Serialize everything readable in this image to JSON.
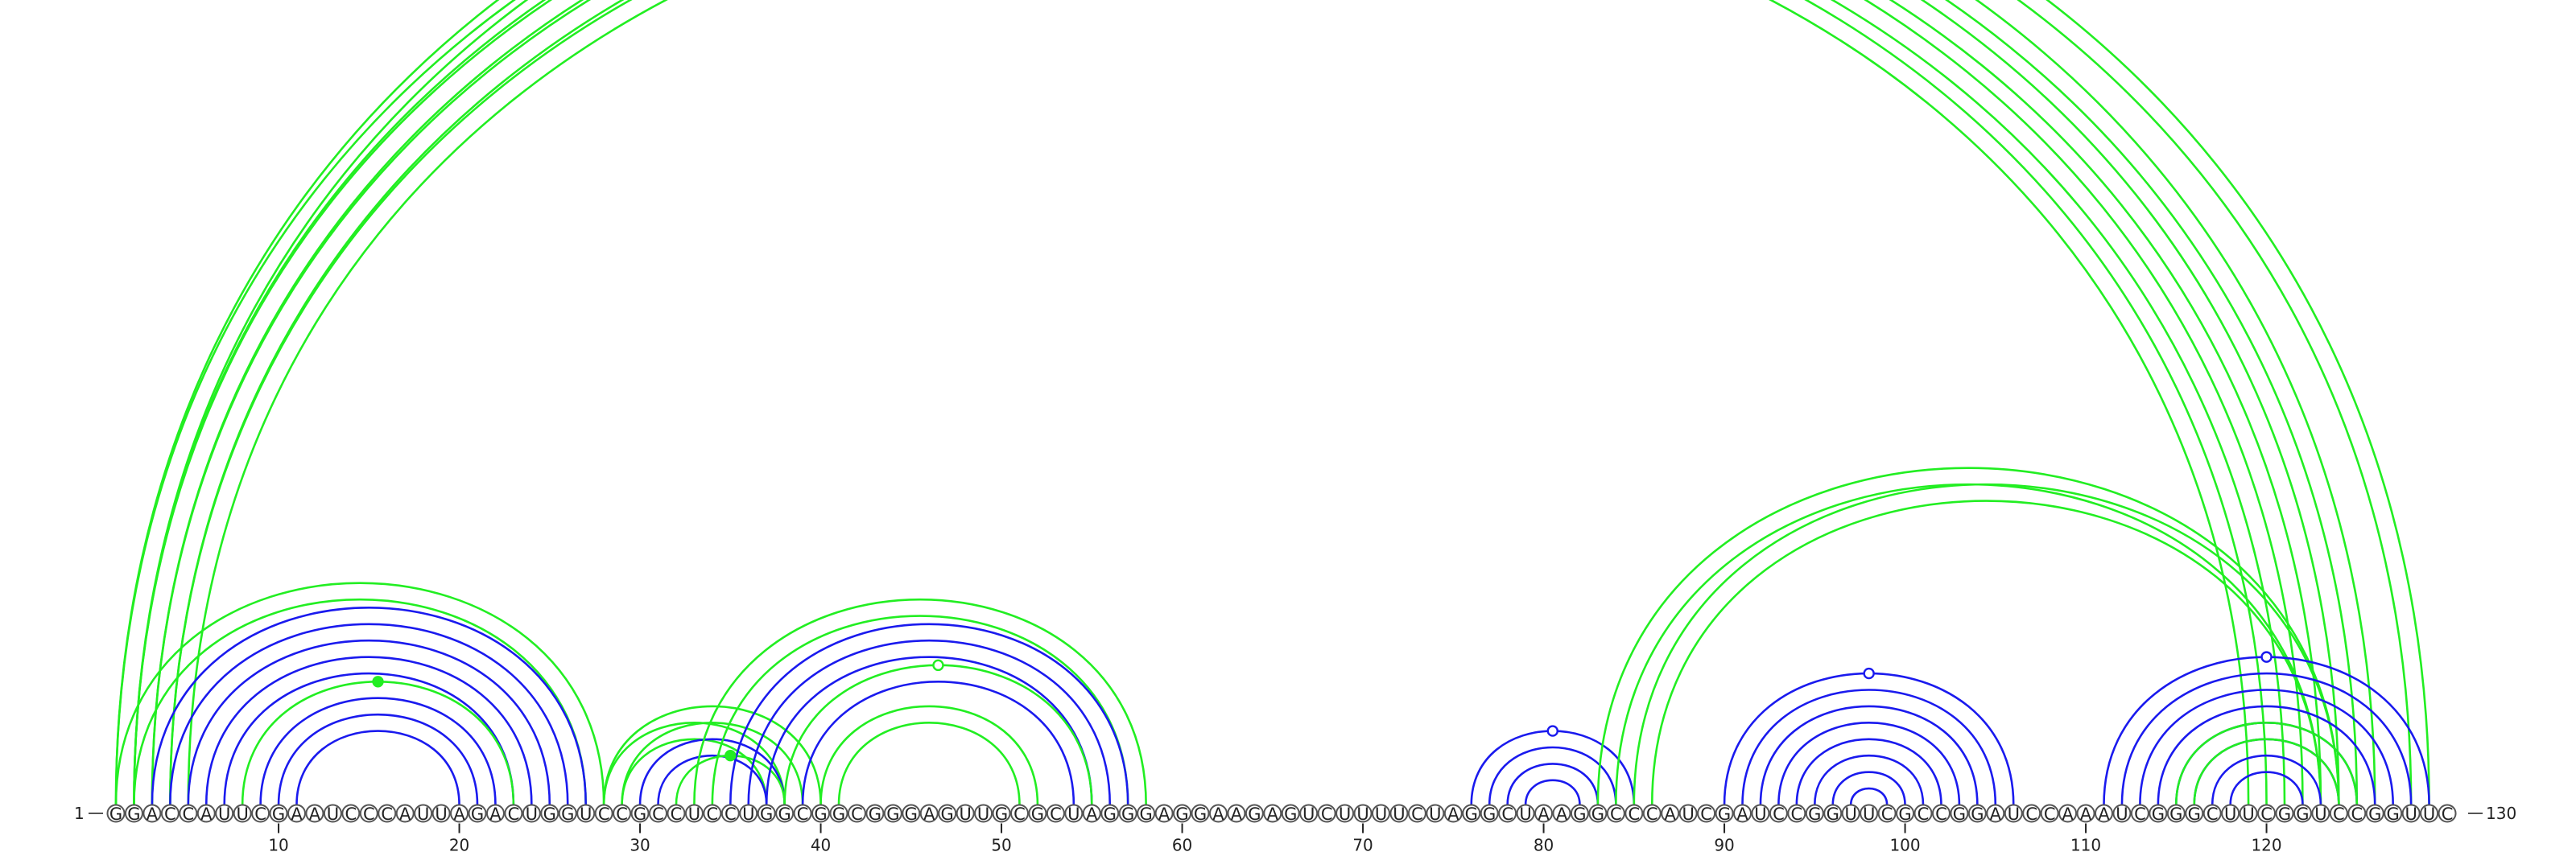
{
  "sequence": "GGACCAUUCGAAUCCCAUUAGACUGGUCCGCCUCCUGGCGGCGGGAGUUGCGCUAGGGAGGAAGAGUCUUUUCUAGGCUAAGGCCCAUCGAUCCGGUUCGCCGGAUCCAAAUCGGGCUUCGGUCCGGUUC",
  "start_label": "1",
  "end_label": "130",
  "ticks": [
    10,
    20,
    30,
    40,
    50,
    60,
    70,
    80,
    90,
    100,
    110,
    120
  ],
  "colors": {
    "green": "#22ee22",
    "blue": "#1a1aee"
  },
  "helices": [
    {
      "color": "green",
      "pairs": [
        [
          1,
          129
        ],
        [
          2,
          128
        ]
      ],
      "marker": {
        "pos": 65,
        "fill": "open"
      }
    },
    {
      "color": "green",
      "pairs": [
        [
          1,
          126
        ],
        [
          2,
          125
        ]
      ]
    },
    {
      "color": "green",
      "pairs": [
        [
          2,
          124
        ],
        [
          3,
          123
        ]
      ]
    },
    {
      "color": "green",
      "pairs": [
        [
          3,
          122
        ],
        [
          4,
          121
        ]
      ]
    },
    {
      "color": "green",
      "pairs": [
        [
          4,
          120
        ],
        [
          5,
          119
        ]
      ]
    },
    {
      "color": "green",
      "pairs": [
        [
          1,
          28
        ],
        [
          2,
          27
        ]
      ]
    },
    {
      "color": "blue",
      "pairs": [
        [
          3,
          27
        ],
        [
          4,
          26
        ],
        [
          5,
          25
        ],
        [
          6,
          24
        ],
        [
          7,
          23
        ]
      ]
    },
    {
      "color": "green",
      "pairs": [
        [
          8,
          23
        ]
      ],
      "marker": {
        "pos": 15,
        "fill": "solid"
      }
    },
    {
      "color": "blue",
      "pairs": [
        [
          9,
          22
        ],
        [
          10,
          21
        ],
        [
          11,
          20
        ]
      ]
    },
    {
      "color": "green",
      "pairs": [
        [
          28,
          38
        ],
        [
          29,
          37
        ]
      ]
    },
    {
      "color": "green",
      "pairs": [
        [
          28,
          40
        ],
        [
          29,
          39
        ]
      ]
    },
    {
      "color": "blue",
      "pairs": [
        [
          30,
          38
        ],
        [
          31,
          37
        ]
      ]
    },
    {
      "color": "green",
      "pairs": [
        [
          32,
          38
        ]
      ],
      "marker": {
        "pos": 35,
        "fill": "solid"
      }
    },
    {
      "color": "green",
      "pairs": [
        [
          33,
          58
        ],
        [
          34,
          57
        ]
      ]
    },
    {
      "color": "blue",
      "pairs": [
        [
          35,
          57
        ],
        [
          36,
          56
        ],
        [
          37,
          55
        ]
      ]
    },
    {
      "color": "green",
      "pairs": [
        [
          38,
          55
        ]
      ],
      "marker": {
        "pos": 46,
        "fill": "open"
      }
    },
    {
      "color": "blue",
      "pairs": [
        [
          39,
          54
        ]
      ]
    },
    {
      "color": "green",
      "pairs": [
        [
          40,
          52
        ],
        [
          41,
          51
        ]
      ]
    },
    {
      "color": "blue",
      "pairs": [
        [
          76,
          85
        ],
        [
          77,
          84
        ],
        [
          78,
          83
        ],
        [
          79,
          82
        ]
      ],
      "marker": {
        "pos": 80,
        "fill": "open"
      }
    },
    {
      "color": "green",
      "pairs": [
        [
          83,
          124
        ],
        [
          84,
          123
        ]
      ]
    },
    {
      "color": "green",
      "pairs": [
        [
          85,
          124
        ],
        [
          86,
          123
        ]
      ]
    },
    {
      "color": "blue",
      "pairs": [
        [
          90,
          106
        ],
        [
          91,
          105
        ],
        [
          92,
          104
        ],
        [
          93,
          103
        ],
        [
          94,
          102
        ],
        [
          95,
          101
        ],
        [
          96,
          100
        ],
        [
          97,
          99
        ]
      ],
      "marker": {
        "pos": 98,
        "fill": "open"
      }
    },
    {
      "color": "blue",
      "pairs": [
        [
          111,
          129
        ],
        [
          112,
          128
        ],
        [
          113,
          127
        ],
        [
          114,
          126
        ],
        [
          115,
          125
        ],
        [
          116,
          124
        ],
        [
          117,
          123
        ],
        [
          118,
          122
        ]
      ],
      "marker": {
        "pos": 120,
        "fill": "open"
      }
    },
    {
      "color": "green",
      "pairs": [
        [
          115,
          125
        ],
        [
          116,
          124
        ]
      ]
    }
  ]
}
